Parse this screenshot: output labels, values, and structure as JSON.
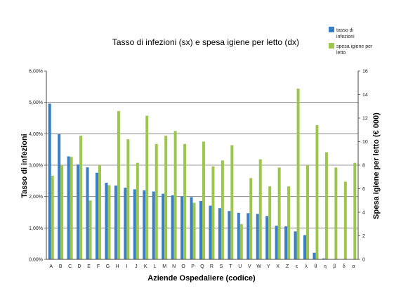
{
  "chart_data": {
    "type": "bar",
    "title": "Tasso di infezioni (sx) e spesa igiene per letto (dx)",
    "xlabel": "Aziende Ospedaliere (codice)",
    "ylabel_left": "Tasso di infezioni",
    "ylabel_right": "Spesa igiene per letto (€ 000)",
    "ylim_left": [
      0,
      6
    ],
    "ylim_right": [
      0,
      16
    ],
    "yticks_left": [
      "0,00%",
      "1,00%",
      "2,00%",
      "3,00%",
      "4,00%",
      "5,00%",
      "6,00%"
    ],
    "yticks_right": [
      "0",
      "2",
      "4",
      "6",
      "8",
      "10",
      "12",
      "14",
      "16"
    ],
    "grid": "horizontal at 1%, 2%, 3%, 4%, 5%",
    "legend_position": "top-right",
    "categories": [
      "A",
      "B",
      "C",
      "D",
      "E",
      "F",
      "G",
      "H",
      "I",
      "J",
      "K",
      "L",
      "M",
      "N",
      "O",
      "P",
      "Q",
      "R",
      "S",
      "T",
      "U",
      "V",
      "W",
      "Y",
      "X",
      "Z",
      "ε",
      "λ",
      "θ",
      "η",
      "β",
      "δ",
      "α"
    ],
    "series": [
      {
        "name": "tasso di infezioni",
        "axis": "left",
        "color": "#3a7ec8",
        "values": [
          4.96,
          3.99,
          3.28,
          3.02,
          2.93,
          2.76,
          2.44,
          2.35,
          2.28,
          2.23,
          2.2,
          2.16,
          2.09,
          2.04,
          2.01,
          1.98,
          1.86,
          1.71,
          1.63,
          1.54,
          1.48,
          1.47,
          1.45,
          1.38,
          1.07,
          1.05,
          0.89,
          0.77,
          0.21,
          0.03,
          0,
          0,
          0
        ]
      },
      {
        "name": "spesa igiene per letto",
        "axis": "right",
        "color": "#9cc64c",
        "values": [
          7.1,
          8.0,
          8.7,
          10.5,
          5.0,
          8.0,
          6.3,
          12.6,
          10.2,
          8.2,
          12.2,
          9.8,
          10.5,
          10.9,
          9.8,
          4.8,
          10.0,
          7.9,
          8.4,
          9.7,
          3.0,
          6.9,
          8.5,
          6.2,
          7.8,
          6.2,
          14.5,
          8.0,
          11.4,
          9.1,
          7.8,
          6.6,
          8.2
        ]
      }
    ]
  },
  "legend": {
    "item1_line1": "tasso di",
    "item1_line2": "infezioni",
    "item2_line1": "spesa igiene per",
    "item2_line2": "letto"
  }
}
